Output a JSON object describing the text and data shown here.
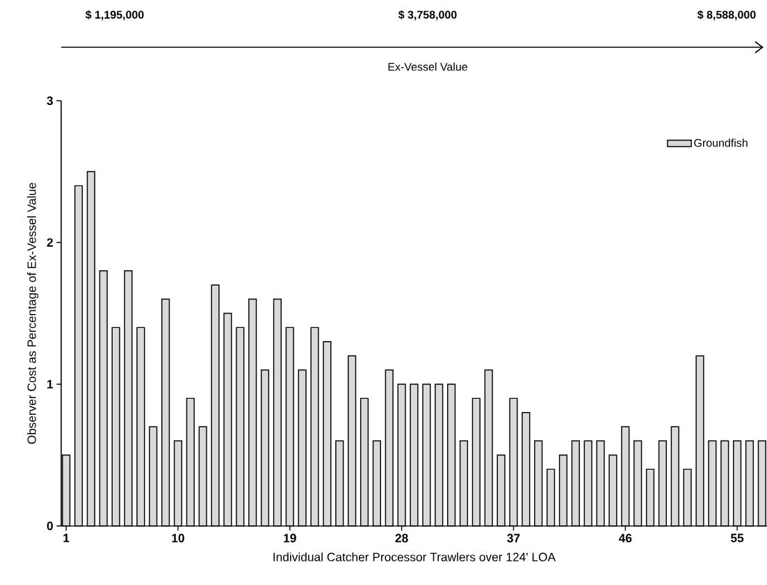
{
  "chart_data": {
    "type": "bar",
    "xlabel": "Individual Catcher Processor Trawlers over 124' LOA",
    "ylabel": "Observer Cost as Percentage of Ex-Vessel Value",
    "annotations": [
      "$ 1,195,000",
      "$ 3,758,000",
      "$ 8,588,000",
      "Ex-Vessel Value"
    ],
    "categories": [
      "1",
      null,
      null,
      null,
      null,
      null,
      null,
      null,
      null,
      "10",
      null,
      null,
      null,
      null,
      null,
      null,
      null,
      null,
      "19",
      null,
      null,
      null,
      null,
      null,
      null,
      null,
      null,
      "28",
      null,
      null,
      null,
      null,
      null,
      null,
      null,
      null,
      "37",
      null,
      null,
      null,
      null,
      null,
      null,
      null,
      null,
      "46",
      null,
      null,
      null,
      null,
      null,
      null,
      null,
      null,
      "55",
      null,
      null
    ],
    "series": [
      {
        "name": "Groundfish",
        "color": "#d9d9d9",
        "values": [
          0.5,
          2.4,
          2.5,
          1.8,
          1.4,
          1.8,
          1.4,
          0.7,
          1.6,
          0.6,
          0.9,
          0.7,
          1.7,
          1.5,
          1.4,
          1.6,
          1.1,
          1.6,
          1.4,
          1.1,
          1.4,
          1.3,
          0.6,
          1.2,
          0.9,
          0.6,
          1.1,
          1.0,
          1.0,
          1.0,
          1.0,
          1.0,
          0.6,
          0.9,
          1.1,
          0.5,
          0.9,
          0.8,
          0.6,
          0.4,
          0.5,
          0.6,
          0.6,
          0.6,
          0.5,
          0.7,
          0.6,
          0.4,
          0.6,
          0.7,
          0.4,
          1.2,
          0.6,
          0.6,
          0.6,
          0.6,
          0.6
        ]
      }
    ],
    "ylim": [
      0,
      3
    ],
    "yticks": [
      0,
      1,
      2,
      3
    ],
    "legend": "top right"
  }
}
